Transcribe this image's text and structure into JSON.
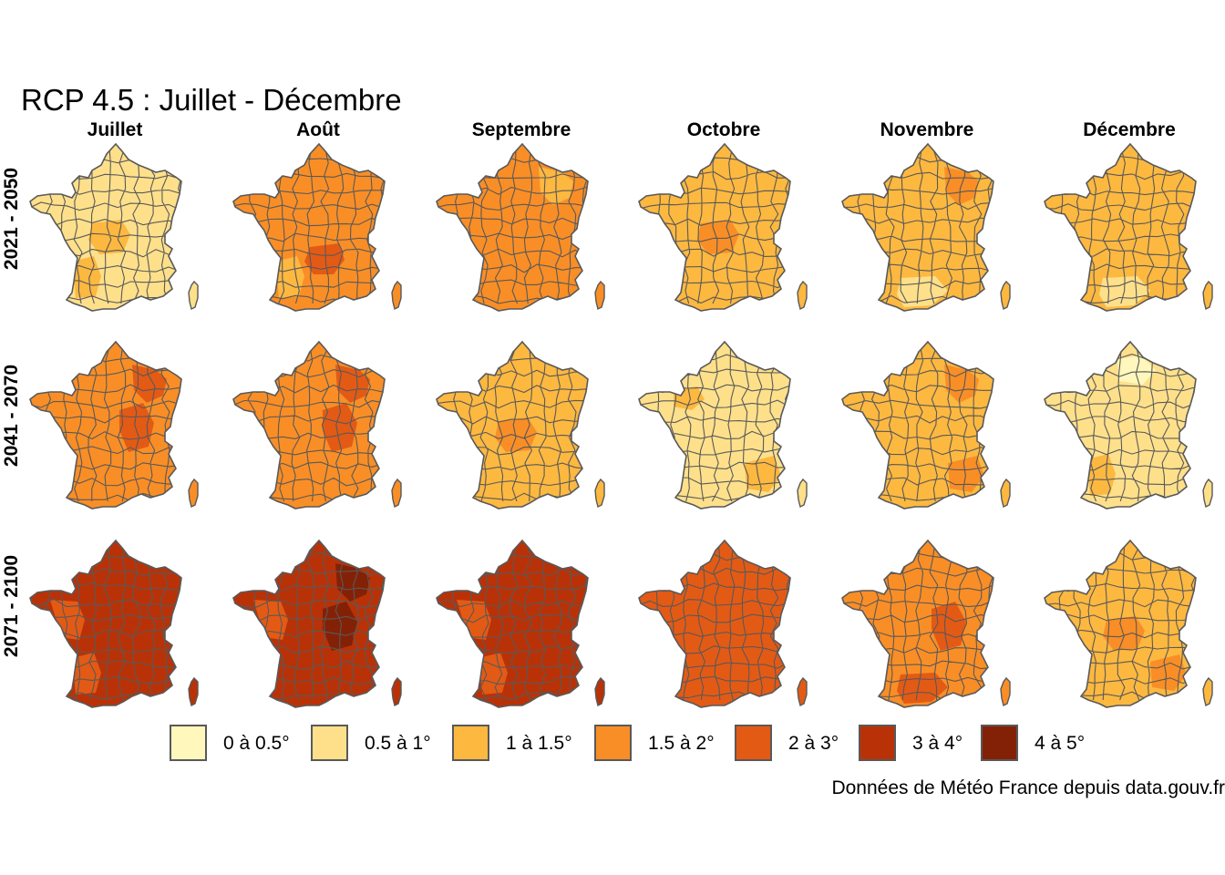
{
  "title": "RCP 4.5 : Juillet - Décembre",
  "columns": [
    "Juillet",
    "Août",
    "Septembre",
    "Octobre",
    "Novembre",
    "Décembre"
  ],
  "rows": [
    "2021 - 2050",
    "2041 - 2070",
    "2071 - 2100"
  ],
  "legend": [
    {
      "label": "0 à 0.5°",
      "color": "#FFF7BC"
    },
    {
      "label": "0.5 à 1°",
      "color": "#FEE08B"
    },
    {
      "label": "1 à 1.5°",
      "color": "#FDB840"
    },
    {
      "label": "1.5 à 2°",
      "color": "#F98E26"
    },
    {
      "label": "2 à 3°",
      "color": "#E35A15"
    },
    {
      "label": "3 à 4°",
      "color": "#B93207"
    },
    {
      "label": "4 à 5°",
      "color": "#832106"
    }
  ],
  "caption": "Données de Météo France depuis data.gouv.fr",
  "border_color": "#595959",
  "panels": [
    {
      "row": "2021 - 2050",
      "column": "Juillet",
      "main_class": "0.5 à 1°",
      "accents": [
        {
          "class": "1 à 1.5°",
          "area": "south-west"
        },
        {
          "class": "1 à 1.5°",
          "area": "centre"
        }
      ]
    },
    {
      "row": "2021 - 2050",
      "column": "Août",
      "main_class": "1.5 à 2°",
      "accents": [
        {
          "class": "2 à 3°",
          "area": "centre-south"
        },
        {
          "class": "1 à 1.5°",
          "area": "south-west"
        }
      ]
    },
    {
      "row": "2021 - 2050",
      "column": "Septembre",
      "main_class": "1.5 à 2°",
      "accents": [
        {
          "class": "1 à 1.5°",
          "area": "north-east"
        }
      ]
    },
    {
      "row": "2021 - 2050",
      "column": "Octobre",
      "main_class": "1 à 1.5°",
      "accents": [
        {
          "class": "1.5 à 2°",
          "area": "centre"
        }
      ]
    },
    {
      "row": "2021 - 2050",
      "column": "Novembre",
      "main_class": "1 à 1.5°",
      "accents": [
        {
          "class": "1.5 à 2°",
          "area": "north-east"
        },
        {
          "class": "0.5 à 1°",
          "area": "south"
        }
      ]
    },
    {
      "row": "2021 - 2050",
      "column": "Décembre",
      "main_class": "1 à 1.5°",
      "accents": [
        {
          "class": "0.5 à 1°",
          "area": "south"
        }
      ]
    },
    {
      "row": "2041 - 2070",
      "column": "Juillet",
      "main_class": "1.5 à 2°",
      "accents": [
        {
          "class": "2 à 3°",
          "area": "centre-east"
        },
        {
          "class": "2 à 3°",
          "area": "north-east"
        }
      ]
    },
    {
      "row": "2041 - 2070",
      "column": "Août",
      "main_class": "1.5 à 2°",
      "accents": [
        {
          "class": "2 à 3°",
          "area": "centre-east"
        },
        {
          "class": "2 à 3°",
          "area": "north-east"
        }
      ]
    },
    {
      "row": "2041 - 2070",
      "column": "Septembre",
      "main_class": "1 à 1.5°",
      "accents": [
        {
          "class": "1.5 à 2°",
          "area": "centre"
        }
      ]
    },
    {
      "row": "2041 - 2070",
      "column": "Octobre",
      "main_class": "0.5 à 1°",
      "accents": [
        {
          "class": "1 à 1.5°",
          "area": "south-east"
        },
        {
          "class": "1 à 1.5°",
          "area": "north-west"
        }
      ]
    },
    {
      "row": "2041 - 2070",
      "column": "Novembre",
      "main_class": "1 à 1.5°",
      "accents": [
        {
          "class": "1.5 à 2°",
          "area": "north-east"
        },
        {
          "class": "1.5 à 2°",
          "area": "south-east"
        }
      ]
    },
    {
      "row": "2041 - 2070",
      "column": "Décembre",
      "main_class": "0.5 à 1°",
      "accents": [
        {
          "class": "0 à 0.5°",
          "area": "north"
        },
        {
          "class": "1 à 1.5°",
          "area": "south-west"
        }
      ]
    },
    {
      "row": "2071 - 2100",
      "column": "Juillet",
      "main_class": "3 à 4°",
      "accents": [
        {
          "class": "2 à 3°",
          "area": "west"
        },
        {
          "class": "2 à 3°",
          "area": "south-west"
        }
      ]
    },
    {
      "row": "2071 - 2100",
      "column": "Août",
      "main_class": "3 à 4°",
      "accents": [
        {
          "class": "4 à 5°",
          "area": "centre-east"
        },
        {
          "class": "4 à 5°",
          "area": "north-east"
        },
        {
          "class": "2 à 3°",
          "area": "west"
        }
      ]
    },
    {
      "row": "2071 - 2100",
      "column": "Septembre",
      "main_class": "3 à 4°",
      "accents": [
        {
          "class": "2 à 3°",
          "area": "west"
        },
        {
          "class": "2 à 3°",
          "area": "south-west"
        }
      ]
    },
    {
      "row": "2071 - 2100",
      "column": "Octobre",
      "main_class": "2 à 3°",
      "accents": []
    },
    {
      "row": "2071 - 2100",
      "column": "Novembre",
      "main_class": "1.5 à 2°",
      "accents": [
        {
          "class": "2 à 3°",
          "area": "south"
        },
        {
          "class": "2 à 3°",
          "area": "centre-east"
        }
      ]
    },
    {
      "row": "2071 - 2100",
      "column": "Décembre",
      "main_class": "1 à 1.5°",
      "accents": [
        {
          "class": "1.5 à 2°",
          "area": "south-east"
        },
        {
          "class": "1.5 à 2°",
          "area": "centre"
        }
      ]
    }
  ]
}
